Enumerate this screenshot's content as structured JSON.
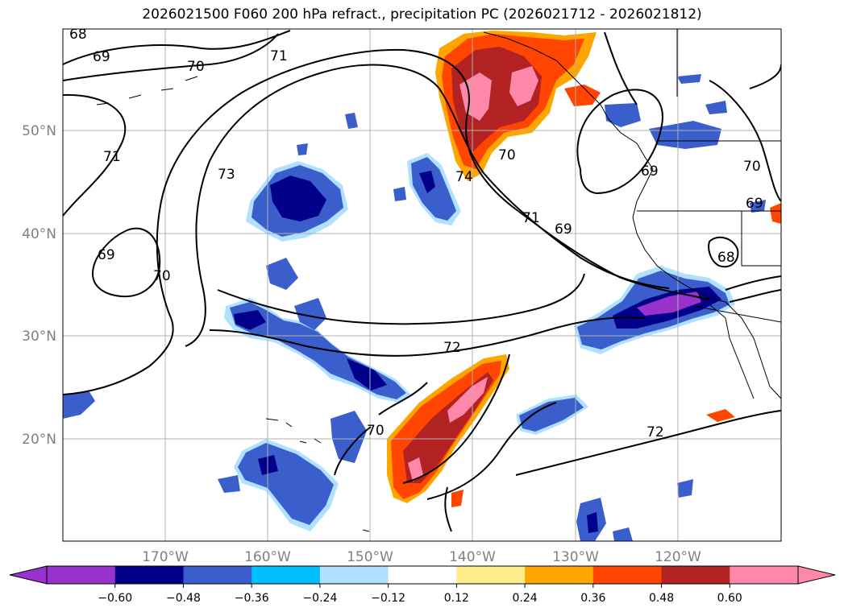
{
  "title": "2026021500 F060 200 hPa refract., precipitation PC (2026021712 - 2026021812)",
  "lat_labels": [
    "50°N",
    "40°N",
    "30°N",
    "20°N"
  ],
  "lon_labels": [
    "170°W",
    "160°W",
    "150°W",
    "140°W",
    "130°W",
    "120°W"
  ],
  "colorbar": {
    "ticks": [
      "−0.60",
      "−0.48",
      "−0.36",
      "−0.24",
      "−0.12",
      "0.12",
      "0.24",
      "0.36",
      "0.48",
      "0.60"
    ],
    "colors": [
      "#9932cc",
      "#00008b",
      "#3a5fcd",
      "#00bfff",
      "#b0e2ff",
      "#ffffff",
      "#ffec8b",
      "#ffa500",
      "#ff4500",
      "#b22222",
      "#ff88aa"
    ]
  },
  "contour_labels": [
    "68",
    "69",
    "70",
    "71",
    "71",
    "73",
    "69",
    "70",
    "74",
    "70",
    "71",
    "69",
    "72",
    "70",
    "72",
    "68",
    "69",
    "70",
    "69"
  ]
}
